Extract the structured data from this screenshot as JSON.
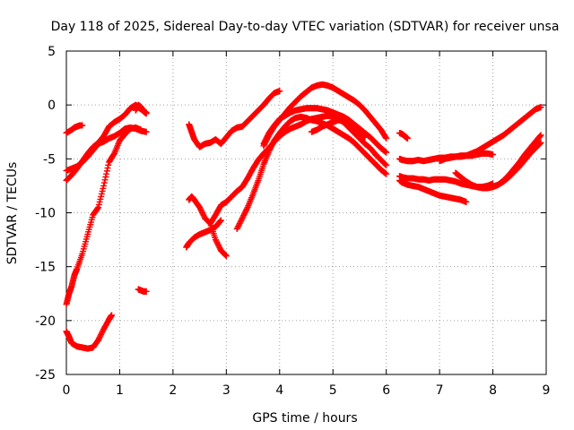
{
  "chart_data": {
    "type": "scatter",
    "title": "Day 118 of 2025, Sidereal Day-to-day VTEC variation (SDTVAR) for receiver unsa",
    "xlabel": "GPS time / hours",
    "ylabel": "SDTVAR / TECUs",
    "xlim": [
      0,
      9
    ],
    "ylim": [
      -25,
      5
    ],
    "xticks": [
      0,
      1,
      2,
      3,
      4,
      5,
      6,
      7,
      8,
      9
    ],
    "yticks": [
      -25,
      -20,
      -15,
      -10,
      -5,
      0,
      5
    ],
    "grid": true,
    "marker": "+",
    "color": "#ff0000",
    "series": [
      {
        "name": "s1",
        "x": [
          0.0,
          0.05,
          0.1,
          0.2,
          0.3,
          0.4,
          0.5,
          0.6,
          0.7,
          0.8,
          0.85
        ],
        "y": [
          -21.0,
          -21.5,
          -22.1,
          -22.4,
          -22.5,
          -22.6,
          -22.5,
          -21.8,
          -20.8,
          -19.9,
          -19.5
        ]
      },
      {
        "name": "s2",
        "x": [
          0.0,
          0.05,
          0.1,
          0.15,
          0.2,
          0.3,
          0.4,
          0.5,
          0.6,
          0.7,
          0.8,
          0.9,
          1.0,
          1.1,
          1.2,
          1.3,
          1.4
        ],
        "y": [
          -18.5,
          -17.5,
          -16.8,
          -15.8,
          -15.2,
          -13.8,
          -12.0,
          -10.2,
          -9.5,
          -7.5,
          -5.3,
          -4.5,
          -3.3,
          -2.7,
          -2.2,
          -2.1,
          -2.3
        ]
      },
      {
        "name": "s3",
        "x": [
          0.0,
          0.1,
          0.2,
          0.3,
          0.4,
          0.5,
          0.6,
          0.7,
          0.8,
          0.9,
          1.0,
          1.1,
          1.2,
          1.3,
          1.35,
          1.4,
          1.5
        ],
        "y": [
          -7.0,
          -6.5,
          -5.9,
          -5.2,
          -4.5,
          -3.9,
          -3.5,
          -2.9,
          -2.0,
          -1.6,
          -1.3,
          -0.9,
          -0.3,
          0.0,
          -0.2,
          -0.4,
          -0.7
        ]
      },
      {
        "name": "s4",
        "x": [
          0.0,
          0.1,
          0.2,
          0.3,
          0.4,
          0.5,
          0.6,
          0.7,
          0.8,
          0.9,
          1.0,
          1.1,
          1.2,
          1.3,
          1.4,
          1.5
        ],
        "y": [
          -6.1,
          -5.9,
          -5.7,
          -5.3,
          -4.8,
          -4.2,
          -3.6,
          -3.4,
          -3.1,
          -2.9,
          -2.6,
          -2.2,
          -2.1,
          -2.2,
          -2.4,
          -2.5
        ]
      },
      {
        "name": "s5",
        "x": [
          0.0,
          0.1,
          0.15,
          0.2,
          0.25,
          0.3
        ],
        "y": [
          -2.6,
          -2.3,
          -2.1,
          -2.0,
          -1.9,
          -1.9
        ]
      },
      {
        "name": "s6",
        "x": [
          1.35,
          1.4,
          1.45,
          1.5
        ],
        "y": [
          -17.1,
          -17.2,
          -17.3,
          -17.3
        ]
      },
      {
        "name": "s7",
        "x": [
          1.3,
          1.35,
          1.4,
          1.45,
          1.5
        ],
        "y": [
          -0.5,
          0.0,
          -0.2,
          -0.6,
          -0.8
        ]
      },
      {
        "name": "s8",
        "x": [
          2.3,
          2.35,
          2.4,
          2.5,
          2.6,
          2.7,
          2.8,
          2.9,
          3.0,
          3.1,
          3.2,
          3.3,
          3.4,
          3.5,
          3.6,
          3.7,
          3.8,
          3.9,
          4.0
        ],
        "y": [
          -1.8,
          -2.5,
          -3.2,
          -3.9,
          -3.6,
          -3.5,
          -3.2,
          -3.6,
          -3.0,
          -2.4,
          -2.1,
          -2.0,
          -1.5,
          -1.0,
          -0.5,
          0.0,
          0.6,
          1.1,
          1.3
        ]
      },
      {
        "name": "s9",
        "x": [
          2.25,
          2.3,
          2.4,
          2.5,
          2.6,
          2.7,
          2.8,
          2.9
        ],
        "y": [
          -13.2,
          -12.8,
          -12.3,
          -12.0,
          -11.8,
          -11.6,
          -11.3,
          -10.7
        ]
      },
      {
        "name": "s10",
        "x": [
          2.3,
          2.35,
          2.4,
          2.5,
          2.6,
          2.7,
          2.8,
          2.9,
          3.0
        ],
        "y": [
          -8.8,
          -8.5,
          -8.8,
          -9.5,
          -10.5,
          -11.0,
          -12.5,
          -13.5,
          -14.0
        ]
      },
      {
        "name": "s11",
        "x": [
          2.7,
          2.8,
          2.9,
          3.0,
          3.1,
          3.2,
          3.3,
          3.4,
          3.5,
          3.6,
          3.7,
          3.8,
          3.9,
          4.0,
          4.1,
          4.2,
          4.3,
          4.4,
          4.5,
          4.6,
          4.7,
          4.8,
          4.9,
          5.0,
          5.1,
          5.2,
          5.3,
          5.4,
          5.5,
          5.6,
          5.7,
          5.8,
          5.9,
          6.0
        ],
        "y": [
          -11.0,
          -10.2,
          -9.3,
          -9.0,
          -8.5,
          -8.0,
          -7.6,
          -6.8,
          -5.9,
          -5.1,
          -4.5,
          -4.0,
          -3.4,
          -2.9,
          -2.5,
          -2.2,
          -2.0,
          -1.8,
          -1.5,
          -1.3,
          -1.2,
          -1.1,
          -1.0,
          -1.1,
          -1.3,
          -1.6,
          -2.1,
          -2.6,
          -3.1,
          -3.6,
          -4.0,
          -4.6,
          -5.1,
          -5.6
        ]
      },
      {
        "name": "s12",
        "x": [
          3.2,
          3.3,
          3.4,
          3.5,
          3.6,
          3.7,
          3.8,
          3.9,
          4.0,
          4.1,
          4.2,
          4.3,
          4.4,
          4.5,
          4.6,
          4.7,
          4.8,
          4.9,
          5.0,
          5.1,
          5.2,
          5.3,
          5.4,
          5.5,
          5.6,
          5.7,
          5.8,
          5.9,
          6.0
        ],
        "y": [
          -11.5,
          -10.5,
          -9.5,
          -8.3,
          -7.0,
          -5.5,
          -4.3,
          -3.3,
          -2.6,
          -2.0,
          -1.5,
          -1.2,
          -1.1,
          -1.2,
          -1.4,
          -1.5,
          -1.7,
          -1.9,
          -2.2,
          -2.5,
          -2.8,
          -3.1,
          -3.5,
          -4.0,
          -4.5,
          -5.0,
          -5.5,
          -6.0,
          -6.4
        ]
      },
      {
        "name": "s13",
        "x": [
          3.7,
          3.8,
          3.9,
          4.0,
          4.1,
          4.2,
          4.3,
          4.4,
          4.5,
          4.6,
          4.7,
          4.8,
          4.9,
          5.0,
          5.1,
          5.2,
          5.3,
          5.4,
          5.5,
          5.6,
          5.7,
          5.8,
          5.9,
          6.0
        ],
        "y": [
          -3.6,
          -2.6,
          -1.9,
          -1.3,
          -1.0,
          -0.7,
          -0.5,
          -0.4,
          -0.3,
          -0.3,
          -0.3,
          -0.4,
          -0.5,
          -0.7,
          -0.9,
          -1.1,
          -1.4,
          -1.8,
          -2.2,
          -2.6,
          -3.0,
          -3.5,
          -4.0,
          -4.4
        ]
      },
      {
        "name": "s14",
        "x": [
          3.7,
          3.8,
          3.9,
          4.0,
          4.1,
          4.2,
          4.3,
          4.4,
          4.5,
          4.6,
          4.7,
          4.8,
          4.9,
          5.0,
          5.1,
          5.2,
          5.3,
          5.4,
          5.5,
          5.6,
          5.7,
          5.8,
          5.9,
          6.0
        ],
        "y": [
          -3.8,
          -2.8,
          -2.0,
          -1.4,
          -0.8,
          -0.2,
          0.3,
          0.8,
          1.2,
          1.6,
          1.8,
          1.9,
          1.8,
          1.6,
          1.3,
          1.0,
          0.7,
          0.4,
          0.0,
          -0.5,
          -1.1,
          -1.7,
          -2.3,
          -3.1
        ]
      },
      {
        "name": "s15",
        "x": [
          4.6,
          4.7,
          4.8,
          4.9,
          5.0,
          5.1,
          5.2,
          5.3,
          5.4,
          5.5,
          5.6
        ],
        "y": [
          -2.5,
          -2.3,
          -2.0,
          -1.8,
          -1.6,
          -1.4,
          -1.5,
          -1.8,
          -2.2,
          -2.7,
          -3.0
        ]
      },
      {
        "name": "s16",
        "x": [
          6.25,
          6.3,
          6.35,
          6.4
        ],
        "y": [
          -2.6,
          -2.7,
          -2.9,
          -3.1
        ]
      },
      {
        "name": "s17",
        "x": [
          6.25,
          6.3,
          6.4,
          6.5,
          6.6,
          6.7,
          6.8,
          6.9,
          7.0,
          7.1,
          7.2,
          7.3,
          7.4,
          7.5,
          7.6,
          7.7,
          7.8,
          7.9,
          8.0,
          8.1,
          8.2,
          8.3,
          8.4,
          8.5,
          8.6,
          8.7,
          8.8,
          8.9
        ],
        "y": [
          -5.0,
          -5.1,
          -5.2,
          -5.2,
          -5.1,
          -5.2,
          -5.1,
          -5.0,
          -4.9,
          -4.9,
          -4.8,
          -4.8,
          -4.7,
          -4.7,
          -4.5,
          -4.3,
          -4.0,
          -3.7,
          -3.4,
          -3.1,
          -2.8,
          -2.4,
          -2.0,
          -1.6,
          -1.2,
          -0.8,
          -0.4,
          -0.2
        ]
      },
      {
        "name": "s18",
        "x": [
          6.25,
          6.3,
          6.4,
          6.5,
          6.6,
          6.7,
          6.8,
          6.9,
          7.0,
          7.1,
          7.2,
          7.3,
          7.4,
          7.5,
          7.6,
          7.7,
          7.8,
          7.9,
          8.0
        ],
        "y": [
          -6.6,
          -6.7,
          -6.8,
          -6.8,
          -6.9,
          -6.9,
          -7.0,
          -6.9,
          -6.9,
          -6.9,
          -7.0,
          -7.1,
          -7.3,
          -7.4,
          -7.5,
          -7.6,
          -7.6,
          -7.5,
          -7.3
        ]
      },
      {
        "name": "s19",
        "x": [
          6.25,
          6.3,
          6.4,
          6.5,
          6.6,
          6.7,
          6.8,
          6.9,
          7.0,
          7.1,
          7.2,
          7.3,
          7.4,
          7.5
        ],
        "y": [
          -7.0,
          -7.2,
          -7.4,
          -7.5,
          -7.6,
          -7.8,
          -8.0,
          -8.2,
          -8.4,
          -8.5,
          -8.6,
          -8.7,
          -8.8,
          -9.0
        ]
      },
      {
        "name": "s20",
        "x": [
          7.0,
          7.1,
          7.2,
          7.3,
          7.4,
          7.5,
          7.6,
          7.7,
          7.8,
          7.9,
          8.0
        ],
        "y": [
          -5.2,
          -5.0,
          -4.9,
          -4.8,
          -4.8,
          -4.7,
          -4.7,
          -4.6,
          -4.5,
          -4.5,
          -4.6
        ]
      },
      {
        "name": "s21",
        "x": [
          7.3,
          7.4,
          7.5,
          7.6,
          7.7,
          7.8,
          7.9,
          8.0,
          8.1,
          8.2,
          8.3,
          8.4,
          8.5,
          8.6,
          8.7,
          8.8,
          8.9
        ],
        "y": [
          -6.3,
          -6.7,
          -7.1,
          -7.4,
          -7.6,
          -7.7,
          -7.7,
          -7.6,
          -7.4,
          -7.0,
          -6.5,
          -5.9,
          -5.3,
          -4.6,
          -4.0,
          -3.4,
          -2.8
        ]
      },
      {
        "name": "s22",
        "x": [
          7.6,
          7.7,
          7.8,
          7.9,
          8.0,
          8.1,
          8.2,
          8.3,
          8.4,
          8.5,
          8.6,
          8.7,
          8.8,
          8.9
        ],
        "y": [
          -7.5,
          -7.6,
          -7.7,
          -7.7,
          -7.6,
          -7.4,
          -7.1,
          -6.7,
          -6.2,
          -5.7,
          -5.1,
          -4.5,
          -4.0,
          -3.5
        ]
      }
    ]
  }
}
